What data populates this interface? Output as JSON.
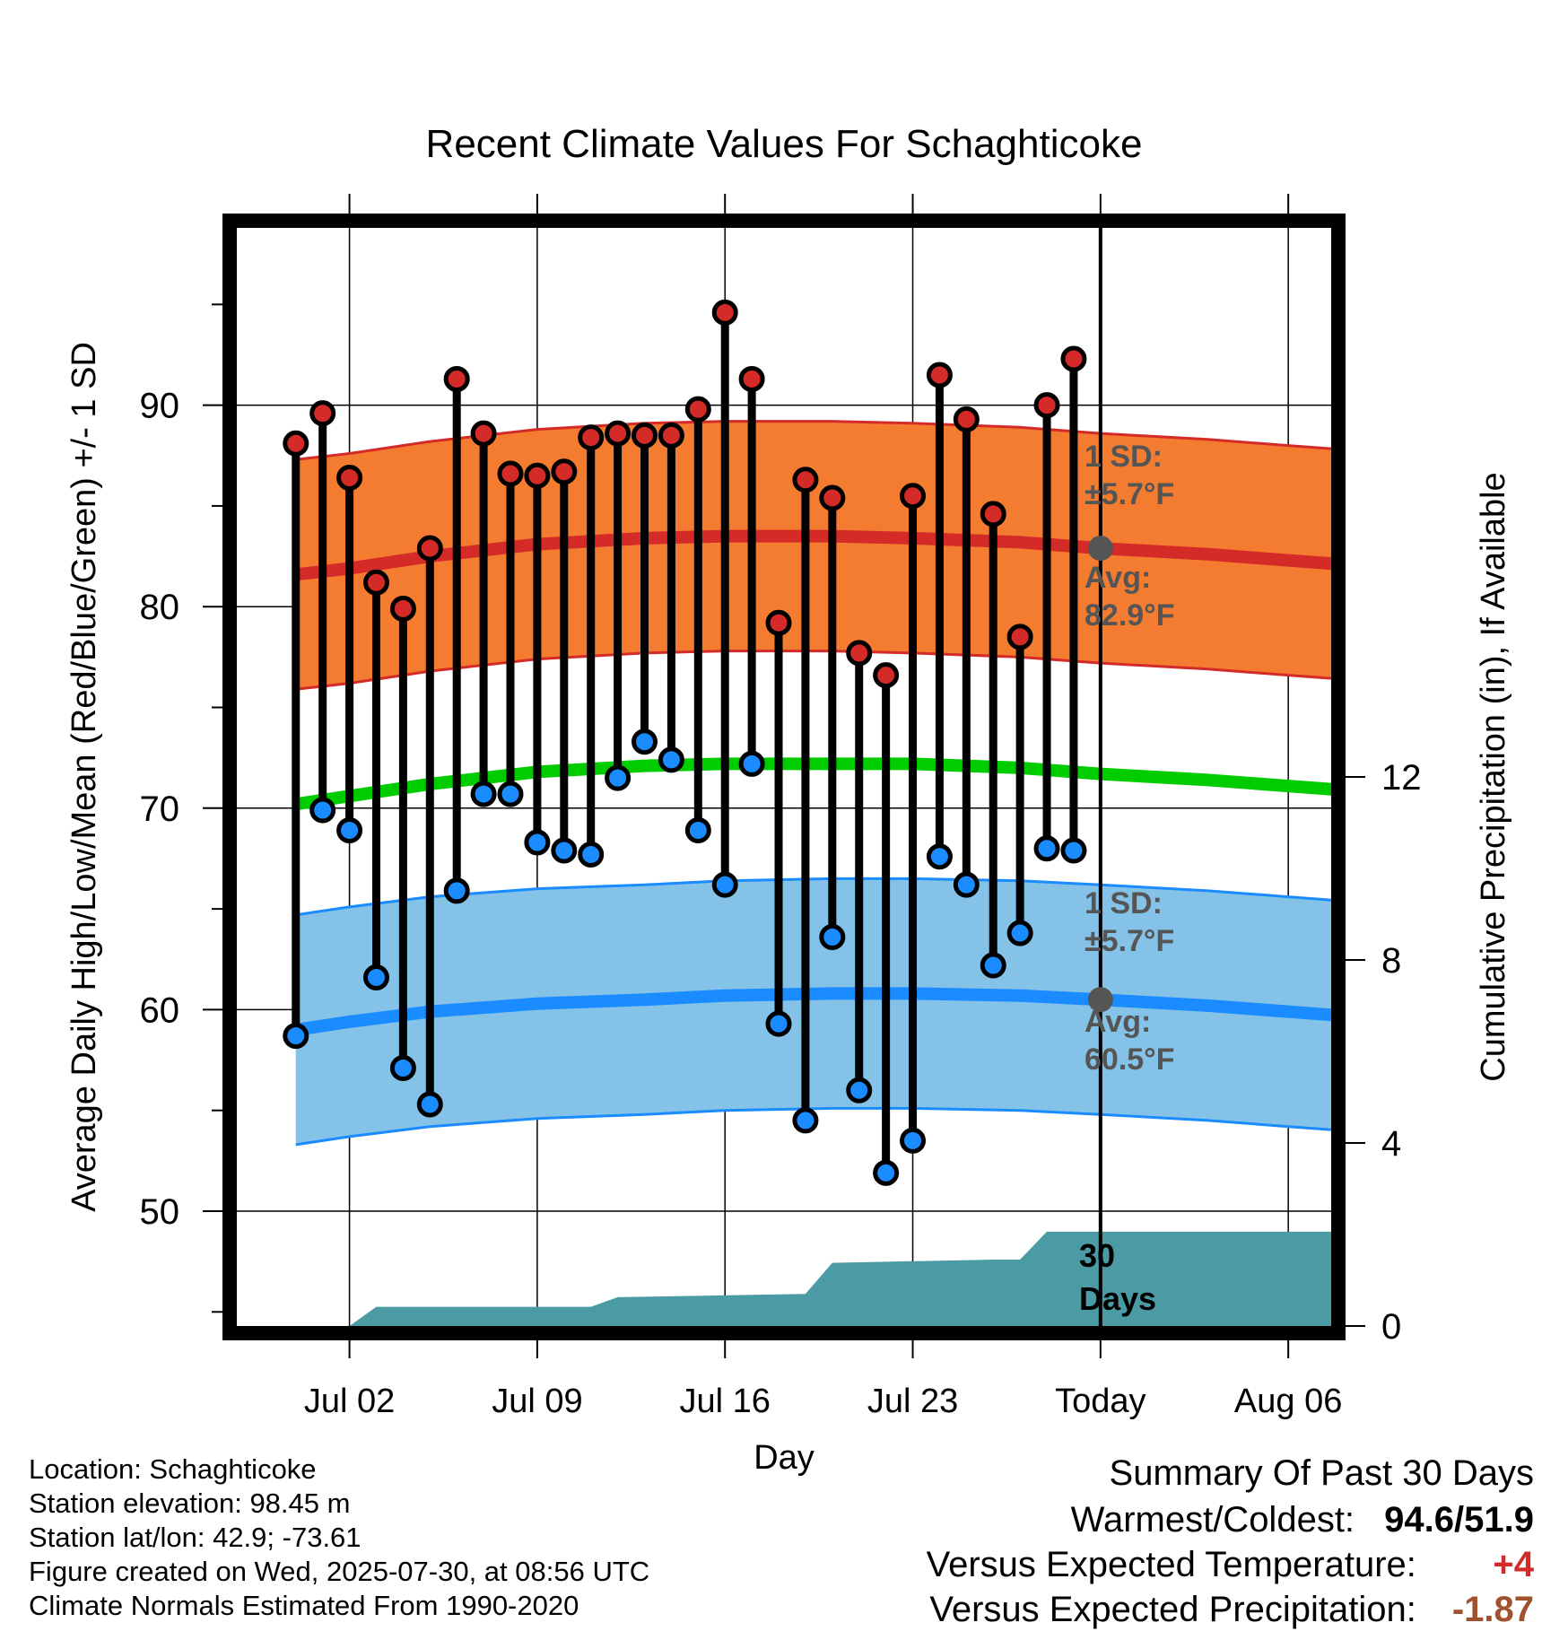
{
  "chart_data": {
    "type": "line",
    "title": "Recent Climate Values For Schaghticoke",
    "xlabel": "Day",
    "ylabel": "Average Daily High/Low/Mean (Red/Blue/Green) +/- 1 SD",
    "y2label": "Cumulative Precipitation (in), If Available",
    "x_ticks": [
      "Jul 02",
      "Jul 09",
      "Jul 16",
      "Jul 23",
      "Today",
      "Aug 06"
    ],
    "y_ticks": [
      "50",
      "60",
      "70",
      "80",
      "90"
    ],
    "y2_ticks": [
      "0",
      "4",
      "8",
      "12"
    ],
    "ylim": [
      44.3,
      98.8
    ],
    "y2lim": [
      0,
      24
    ],
    "xlim": [
      -3.2,
      37.6
    ],
    "grid": true,
    "dates": [
      "Jun 30",
      "Jul 01",
      "Jul 02",
      "Jul 03",
      "Jul 04",
      "Jul 05",
      "Jul 06",
      "Jul 07",
      "Jul 08",
      "Jul 09",
      "Jul 10",
      "Jul 11",
      "Jul 12",
      "Jul 13",
      "Jul 14",
      "Jul 15",
      "Jul 16",
      "Jul 17",
      "Jul 18",
      "Jul 19",
      "Jul 20",
      "Jul 21",
      "Jul 22",
      "Jul 23",
      "Jul 24",
      "Jul 25",
      "Jul 26",
      "Jul 27",
      "Jul 28",
      "Jul 29"
    ],
    "daily_high": [
      88.1,
      89.6,
      86.4,
      81.2,
      79.9,
      82.9,
      91.3,
      88.6,
      86.6,
      86.5,
      86.7,
      88.4,
      88.6,
      88.5,
      88.5,
      89.8,
      94.6,
      91.3,
      79.2,
      86.3,
      85.4,
      77.7,
      76.6,
      85.5,
      91.5,
      89.3,
      84.6,
      78.5,
      90.0,
      92.3
    ],
    "daily_low": [
      58.7,
      69.9,
      68.9,
      61.6,
      57.1,
      55.3,
      65.9,
      70.7,
      70.7,
      68.3,
      67.9,
      67.7,
      71.5,
      73.3,
      72.4,
      68.9,
      66.2,
      72.2,
      59.3,
      54.5,
      63.6,
      56.0,
      51.9,
      53.5,
      67.6,
      66.2,
      62.2,
      63.8,
      68.0,
      67.9
    ],
    "normals_x": [
      "Jun 30",
      "Jul 02",
      "Jul 05",
      "Jul 09",
      "Jul 13",
      "Jul 16",
      "Jul 20",
      "Jul 23",
      "Jul 27",
      "Jul 30",
      "Aug 03",
      "Aug 06",
      "Aug 09"
    ],
    "normal_high": [
      81.6,
      81.9,
      82.5,
      83.1,
      83.4,
      83.5,
      83.5,
      83.4,
      83.2,
      82.9,
      82.6,
      82.3,
      82.0
    ],
    "normal_high_sd": 5.7,
    "normal_mean": [
      70.2,
      70.6,
      71.2,
      71.8,
      72.1,
      72.2,
      72.2,
      72.2,
      72.0,
      71.7,
      71.4,
      71.1,
      70.8
    ],
    "normal_low": [
      59.0,
      59.4,
      59.9,
      60.3,
      60.5,
      60.7,
      60.8,
      60.8,
      60.7,
      60.5,
      60.2,
      59.9,
      59.6
    ],
    "normal_low_sd": 5.7,
    "precip_x": [
      "Jun 30",
      "Jul 01",
      "Jul 02",
      "Jul 03",
      "Jul 11",
      "Jul 12",
      "Jul 19",
      "Jul 20",
      "Jul 26",
      "Jul 27",
      "Jul 28",
      "Aug 09"
    ],
    "precip_cum": [
      0.0,
      0.0,
      0.0,
      0.42,
      0.42,
      0.63,
      0.7,
      1.38,
      1.45,
      1.45,
      2.06,
      2.06
    ],
    "annotations": {
      "high_sd_label": "1 SD:",
      "high_sd_value": "±5.7°F",
      "high_avg_label": "Avg:",
      "high_avg_value": "82.9°F",
      "low_sd_label": "1 SD:",
      "low_sd_value": "±5.7°F",
      "low_avg_label": "Avg:",
      "low_avg_value": "60.5°F",
      "precip_label_1": "30",
      "precip_label_2": "Days"
    },
    "colors": {
      "high_band": "#f37c30",
      "high_line": "#d42a28",
      "mean_line": "#00cc00",
      "low_band": "#85c2e8",
      "low_line": "#1a8cff",
      "precip": "#4a9ba4",
      "high_marker": "#d42a28",
      "low_marker": "#1a8cff",
      "avg_marker": "#555555"
    }
  },
  "footer": {
    "location": "Location: Schaghticoke",
    "elevation": "Station elevation: 98.45 m",
    "latlon": "Station lat/lon: 42.9; -73.61",
    "created": "Figure created on Wed, 2025-07-30, at 08:56 UTC",
    "normals": "Climate Normals Estimated From 1990-2020"
  },
  "summary": {
    "title": "Summary Of Past 30 Days",
    "warmest_label": "Warmest/Coldest:",
    "warmest_value": "94.6/51.9",
    "temp_label": "Versus Expected Temperature:",
    "temp_value": "+4",
    "temp_color": "#d42a28",
    "precip_label": "Versus Expected Precipitation:",
    "precip_value": "-1.87",
    "precip_color": "#a0522d"
  }
}
